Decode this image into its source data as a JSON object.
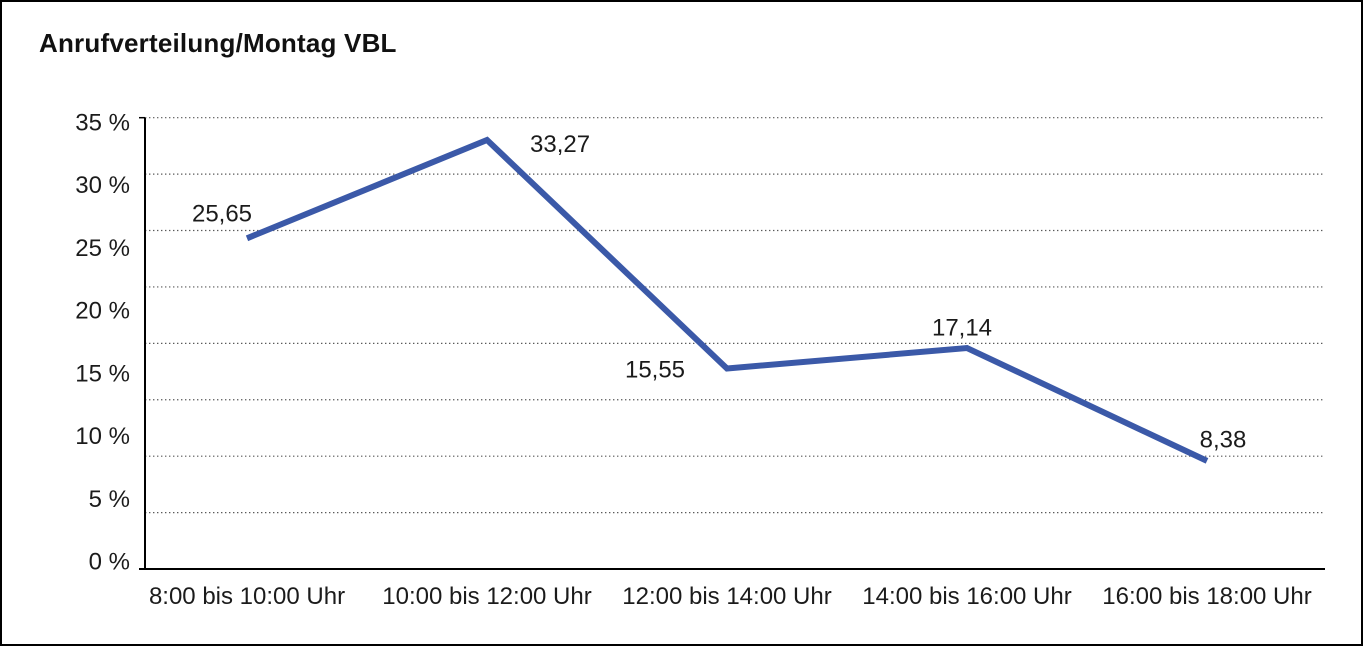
{
  "chart_data": {
    "type": "line",
    "title": "Anrufverteilung/Montag VBL",
    "categories": [
      "8:00 bis 10:00 Uhr",
      "10:00 bis 12:00 Uhr",
      "12:00 bis 14:00 Uhr",
      "14:00 bis 16:00 Uhr",
      "16:00 bis 18:00 Uhr"
    ],
    "series": [
      {
        "name": "Anrufverteilung Montag VBL",
        "values": [
          25.65,
          33.27,
          15.55,
          17.14,
          8.38
        ],
        "color": "#3B59A8"
      }
    ],
    "point_labels": [
      "25,65",
      "33,27",
      "15,55",
      "17,14",
      "8,38"
    ],
    "y_axis": {
      "min": 0,
      "max": 35,
      "step": 5,
      "unit": "%",
      "tick_labels": [
        "35 %",
        "30 %",
        "25 %",
        "20 %",
        "15 %",
        "10 %",
        "5 %",
        "0 %"
      ]
    },
    "x_axis_label": "",
    "y_axis_label": "",
    "grid": "horizontal-dotted",
    "legend": "none",
    "colors": {
      "line": "#3B59A8",
      "gridline": "#5a5a5a",
      "axis": "#000000",
      "text": "#1b1b1b"
    }
  }
}
